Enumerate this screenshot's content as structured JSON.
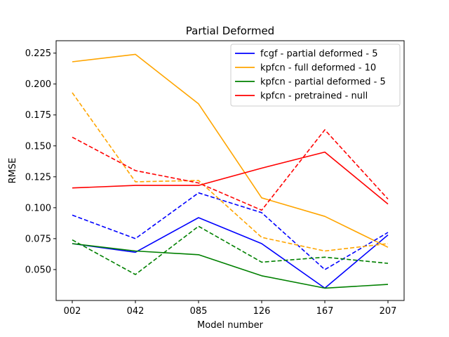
{
  "chart_data": {
    "type": "line",
    "title": "Partial Deformed",
    "xlabel": "Model number",
    "ylabel": "RMSE",
    "categories": [
      "002",
      "042",
      "085",
      "126",
      "167",
      "207"
    ],
    "ylim": [
      0.025,
      0.235
    ],
    "yticks": [
      0.05,
      0.075,
      0.1,
      0.125,
      0.15,
      0.175,
      0.2,
      0.225
    ],
    "ytick_labels": [
      "0.050",
      "0.075",
      "0.100",
      "0.125",
      "0.150",
      "0.175",
      "0.200",
      "0.225"
    ],
    "grid": false,
    "legend_position": "top-right",
    "series": [
      {
        "name": "fcgf - partial deformed - 5",
        "color": "#0000ff",
        "style": "solid",
        "values": [
          0.071,
          0.064,
          0.092,
          0.071,
          0.035,
          0.078
        ]
      },
      {
        "name": "kpfcn - full deformed - 10",
        "color": "#ffa500",
        "style": "solid",
        "values": [
          0.218,
          0.224,
          0.184,
          0.108,
          0.093,
          0.068
        ]
      },
      {
        "name": "kpfcn - partial deformed - 5",
        "color": "#008000",
        "style": "solid",
        "values": [
          0.071,
          0.065,
          0.062,
          0.045,
          0.035,
          0.038
        ]
      },
      {
        "name": "kpfcn - pretrained - null",
        "color": "#ff0000",
        "style": "solid",
        "values": [
          0.116,
          0.118,
          0.118,
          0.132,
          0.145,
          0.103
        ]
      },
      {
        "name": "",
        "color": "#0000ff",
        "style": "dashed",
        "values": [
          0.094,
          0.075,
          0.112,
          0.096,
          0.05,
          0.08
        ]
      },
      {
        "name": "",
        "color": "#ffa500",
        "style": "dashed",
        "values": [
          0.193,
          0.121,
          0.122,
          0.076,
          0.065,
          0.071
        ]
      },
      {
        "name": "",
        "color": "#008000",
        "style": "dashed",
        "values": [
          0.074,
          0.046,
          0.085,
          0.056,
          0.06,
          0.055
        ]
      },
      {
        "name": "",
        "color": "#ff0000",
        "style": "dashed",
        "values": [
          0.157,
          0.13,
          0.12,
          0.098,
          0.163,
          0.107
        ]
      }
    ]
  }
}
